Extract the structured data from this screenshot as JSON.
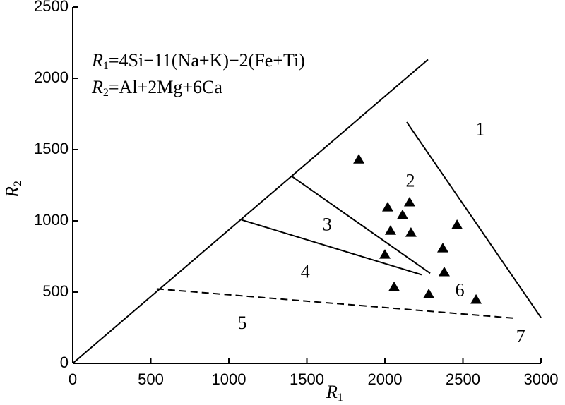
{
  "chart_data": {
    "type": "scatter",
    "x_label": {
      "symbol": "R",
      "subscript": "1"
    },
    "y_label": {
      "symbol": "R",
      "subscript": "2"
    },
    "formulas": [
      {
        "symbol": "R",
        "subscript": "1",
        "expression": "=4Si−11(Na+K)−2(Fe+Ti)"
      },
      {
        "symbol": "R",
        "subscript": "2",
        "expression": "=Al+2Mg+6Ca"
      }
    ],
    "x": [
      1833,
      2158,
      2018,
      2113,
      2036,
      2167,
      2462,
      2371,
      2000,
      2380,
      2059,
      2281,
      2584
    ],
    "series": [
      {
        "color": "#000000",
        "values": [
          1430,
          1129,
          1094,
          1040,
          930,
          916,
          970,
          807,
          762,
          639,
          535,
          485,
          446
        ]
      }
    ],
    "xlim": [
      0,
      3000
    ],
    "ylim": [
      0,
      2500
    ],
    "xticks": [
      0,
      500,
      1000,
      1500,
      2000,
      2500,
      3000
    ],
    "yticks": [
      0,
      500,
      1000,
      1500,
      2000,
      2500
    ],
    "boundaries": [
      {
        "x": [
          0,
          2276
        ],
        "y": [
          0,
          2132
        ],
        "dashed": false
      },
      {
        "x": [
          2140,
          3000
        ],
        "y": [
          1693,
          321
        ],
        "dashed": false
      },
      {
        "x": [
          1403,
          2290
        ],
        "y": [
          1313,
          632
        ],
        "dashed": false
      },
      {
        "x": [
          1081,
          2235
        ],
        "y": [
          1007,
          622
        ],
        "dashed": false
      },
      {
        "x": [
          538,
          2842
        ],
        "y": [
          523,
          316
        ],
        "dashed": true
      }
    ],
    "field_labels": [
      {
        "text": "1",
        "x": 2610,
        "y": 1630
      },
      {
        "text": "2",
        "x": 2163,
        "y": 1270
      },
      {
        "text": "3",
        "x": 1630,
        "y": 963
      },
      {
        "text": "4",
        "x": 1490,
        "y": 632
      },
      {
        "text": "5",
        "x": 1086,
        "y": 271
      },
      {
        "text": "6",
        "x": 2480,
        "y": 503
      },
      {
        "text": "7",
        "x": 2870,
        "y": 178
      }
    ]
  }
}
